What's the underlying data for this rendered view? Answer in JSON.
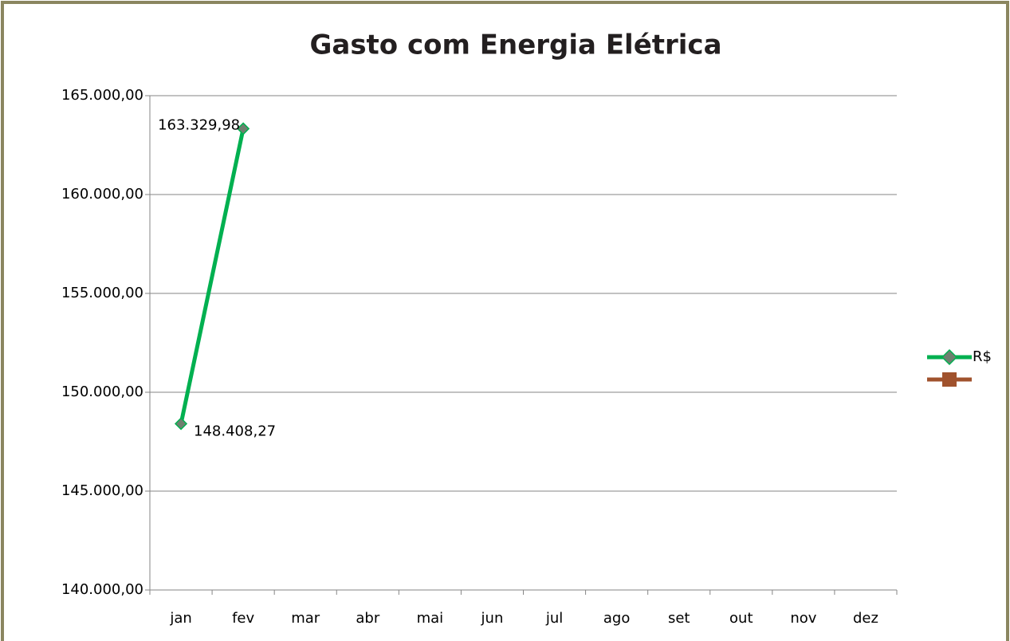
{
  "chart_data": {
    "type": "line",
    "title": "Gasto com Energia Elétrica",
    "categories": [
      "jan",
      "fev",
      "mar",
      "abr",
      "mai",
      "jun",
      "jul",
      "ago",
      "set",
      "out",
      "nov",
      "dez"
    ],
    "series": [
      {
        "name": "R$",
        "color": "#00b050",
        "marker": "diamond",
        "marker_color": "#6f7f6f",
        "values": [
          148408.27,
          163329.98,
          null,
          null,
          null,
          null,
          null,
          null,
          null,
          null,
          null,
          null
        ],
        "value_labels": [
          "148.408,27",
          "163.329,98",
          null,
          null,
          null,
          null,
          null,
          null,
          null,
          null,
          null,
          null
        ]
      },
      {
        "color": "#a0522d",
        "marker": "square",
        "marker_color": "#a0522d",
        "values": [
          null,
          null,
          null,
          null,
          null,
          null,
          null,
          null,
          null,
          null,
          null,
          null
        ]
      }
    ],
    "ylim": [
      140000,
      165000
    ],
    "yticks": [
      {
        "value": 140000,
        "label": "140.000,00"
      },
      {
        "value": 145000,
        "label": "145.000,00"
      },
      {
        "value": 150000,
        "label": "150.000,00"
      },
      {
        "value": 155000,
        "label": "155.000,00"
      },
      {
        "value": 160000,
        "label": "160.000,00"
      },
      {
        "value": 165000,
        "label": "165.000,00"
      }
    ],
    "grid": true,
    "legend": "right"
  }
}
